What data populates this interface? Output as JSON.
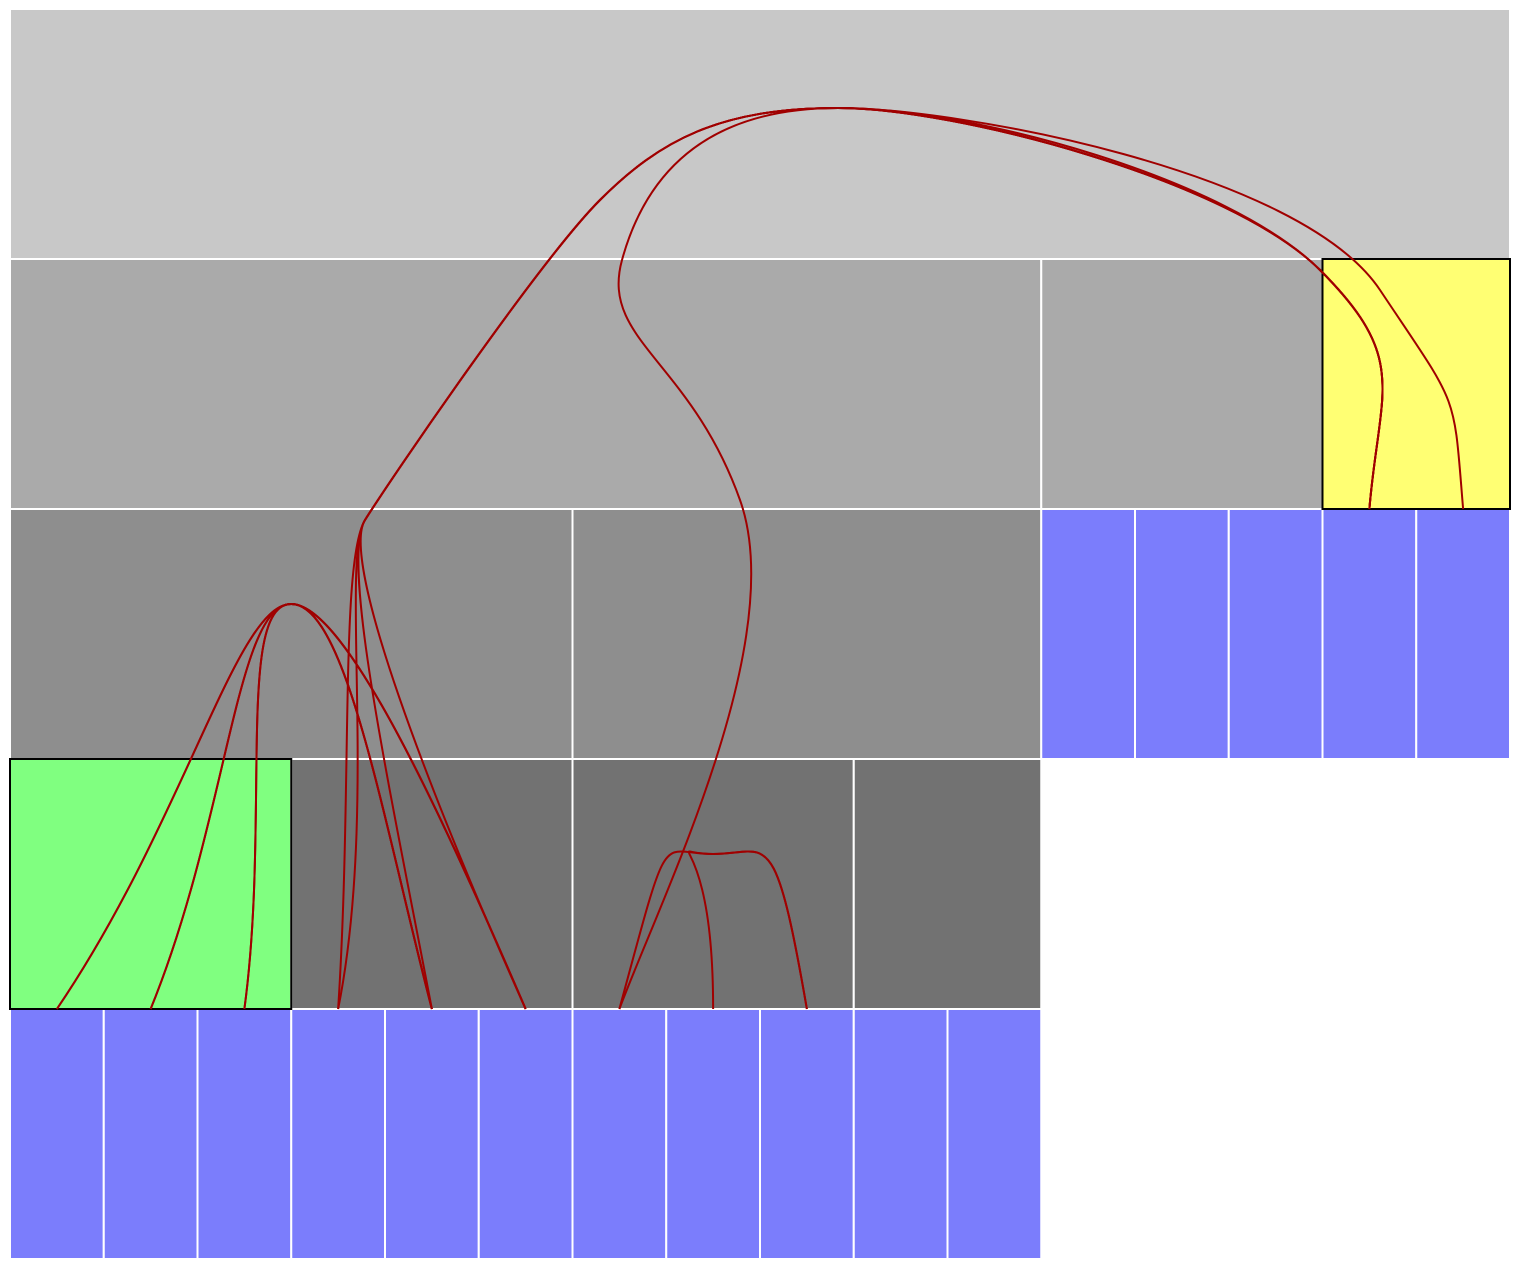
{
  "diagram": {
    "type": "icicle-with-edge-bundling",
    "background": "#ffffff",
    "separator_color": "#ffffff",
    "edge_color": "#a00000",
    "highlight_border_color": "#000000",
    "level_colors": [
      "#c8c8c8",
      "#aaaaaa",
      "#8e8e8e",
      "#727272"
    ],
    "leaf_color": "#7b7dfc",
    "highlight_colors": {
      "source": "#80ff80",
      "target": "#ffff73"
    },
    "levels": [
      {
        "depth": 0,
        "nodes": [
          {
            "id": "root",
            "span": [
              0,
              16
            ]
          }
        ]
      },
      {
        "depth": 1,
        "nodes": [
          {
            "id": "a",
            "span": [
              0,
              11
            ]
          },
          {
            "id": "b",
            "span": [
              11,
              14
            ]
          },
          {
            "id": "c",
            "span": [
              14,
              16
            ],
            "highlight": "target"
          }
        ]
      },
      {
        "depth": 2,
        "nodes": [
          {
            "id": "a1",
            "span": [
              0,
              6
            ]
          },
          {
            "id": "a2",
            "span": [
              6,
              11
            ]
          },
          {
            "id": "b1",
            "span": [
              11,
              12
            ],
            "leaf": true
          },
          {
            "id": "b2",
            "span": [
              12,
              13
            ],
            "leaf": true
          },
          {
            "id": "b3",
            "span": [
              13,
              14
            ],
            "leaf": true
          },
          {
            "id": "c1",
            "span": [
              14,
              15
            ],
            "leaf": true
          },
          {
            "id": "c2",
            "span": [
              15,
              16
            ],
            "leaf": true
          }
        ]
      },
      {
        "depth": 3,
        "nodes": [
          {
            "id": "a1x",
            "span": [
              0,
              3
            ],
            "highlight": "source"
          },
          {
            "id": "a1y",
            "span": [
              3,
              6
            ]
          },
          {
            "id": "a2x",
            "span": [
              6,
              9
            ]
          },
          {
            "id": "a2y",
            "span": [
              9,
              11
            ]
          }
        ]
      },
      {
        "depth": 4,
        "nodes": [
          {
            "id": "l0",
            "span": [
              0,
              1
            ],
            "leaf": true
          },
          {
            "id": "l1",
            "span": [
              1,
              2
            ],
            "leaf": true
          },
          {
            "id": "l2",
            "span": [
              2,
              3
            ],
            "leaf": true
          },
          {
            "id": "l3",
            "span": [
              3,
              4
            ],
            "leaf": true
          },
          {
            "id": "l4",
            "span": [
              4,
              5
            ],
            "leaf": true
          },
          {
            "id": "l5",
            "span": [
              5,
              6
            ],
            "leaf": true
          },
          {
            "id": "l6",
            "span": [
              6,
              7
            ],
            "leaf": true
          },
          {
            "id": "l7",
            "span": [
              7,
              8
            ],
            "leaf": true
          },
          {
            "id": "l8",
            "span": [
              8,
              9
            ],
            "leaf": true
          },
          {
            "id": "l9",
            "span": [
              9,
              10
            ],
            "leaf": true
          },
          {
            "id": "l10",
            "span": [
              10,
              11
            ],
            "leaf": true
          }
        ]
      }
    ],
    "edges": [
      {
        "from": "l0",
        "to": "l4",
        "via": "a1"
      },
      {
        "from": "l0",
        "to": "l5",
        "via": "a1"
      },
      {
        "from": "l1",
        "to": "l4",
        "via": "a1"
      },
      {
        "from": "l1",
        "to": "l5",
        "via": "a1"
      },
      {
        "from": "l2",
        "to": "l4",
        "via": "a1"
      },
      {
        "from": "l2",
        "to": "l5",
        "via": "a1"
      },
      {
        "from": "l6",
        "to": "l8",
        "via": "a2x"
      },
      {
        "from": "l7",
        "to": "l8",
        "via": "a2x"
      },
      {
        "from": "l3",
        "to": "c1",
        "via": "root"
      },
      {
        "from": "l4",
        "to": "c1",
        "via": "root"
      },
      {
        "from": "l5",
        "to": "c1",
        "via": "root"
      },
      {
        "from": "l3",
        "to": "c2",
        "via": "root"
      },
      {
        "from": "l6",
        "to": "c1",
        "via": "root"
      }
    ]
  }
}
